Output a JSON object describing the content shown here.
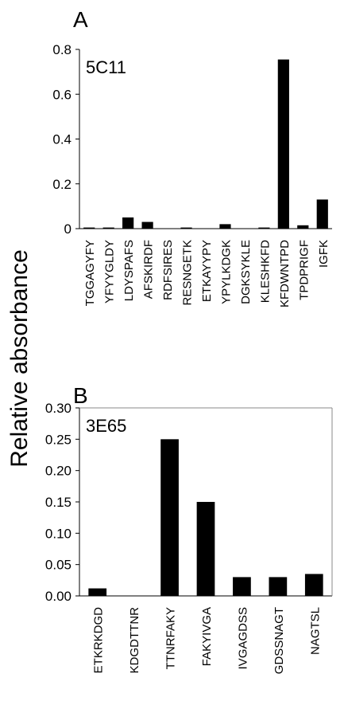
{
  "shared_ylabel": "Relative absorbance",
  "chart_data": [
    {
      "type": "bar",
      "panel": "A",
      "annotation": "5C11",
      "color": "#000000",
      "frame": false,
      "categories": [
        "TGGAGYFY",
        "YFYYGLDY",
        "LDYSPAFS",
        "AFSKIRDF",
        "RDFSIRES",
        "RESNGETK",
        "ETKAYYPY",
        "YPYLKDGK",
        "DGKSYKLE",
        "KLESHKFD",
        "KFDWNTPD",
        "TPDPRIGF",
        "IGFK"
      ],
      "values": [
        0.005,
        0.005,
        0.05,
        0.03,
        0,
        0.005,
        0,
        0.02,
        0,
        0.005,
        0.755,
        0.015,
        0.13
      ],
      "ylim": [
        0,
        0.8
      ],
      "yticks": [
        0,
        0.2,
        0.4,
        0.6,
        0.8
      ]
    },
    {
      "type": "bar",
      "panel": "B",
      "annotation": "3E65",
      "color": "#000000",
      "frame": true,
      "categories": [
        "ETKRKDGD",
        "KDGDTTNR",
        "TTNRFAKY",
        "FAKYIVGA",
        "IVGAGDSS",
        "GDSSNAGT",
        "NAGTSL"
      ],
      "values": [
        0.012,
        0,
        0.25,
        0.15,
        0.03,
        0.03,
        0.035
      ],
      "ylim": [
        0,
        0.3
      ],
      "yticks": [
        {
          "value": 0,
          "label": "0.00"
        },
        {
          "value": 0.05,
          "label": "0.05"
        },
        {
          "value": 0.1,
          "label": "0.10"
        },
        {
          "value": 0.15,
          "label": "0.15"
        },
        {
          "value": 0.2,
          "label": "0.20"
        },
        {
          "value": 0.25,
          "label": "0.25"
        },
        {
          "value": 0.3,
          "label": "0.30"
        }
      ]
    }
  ]
}
